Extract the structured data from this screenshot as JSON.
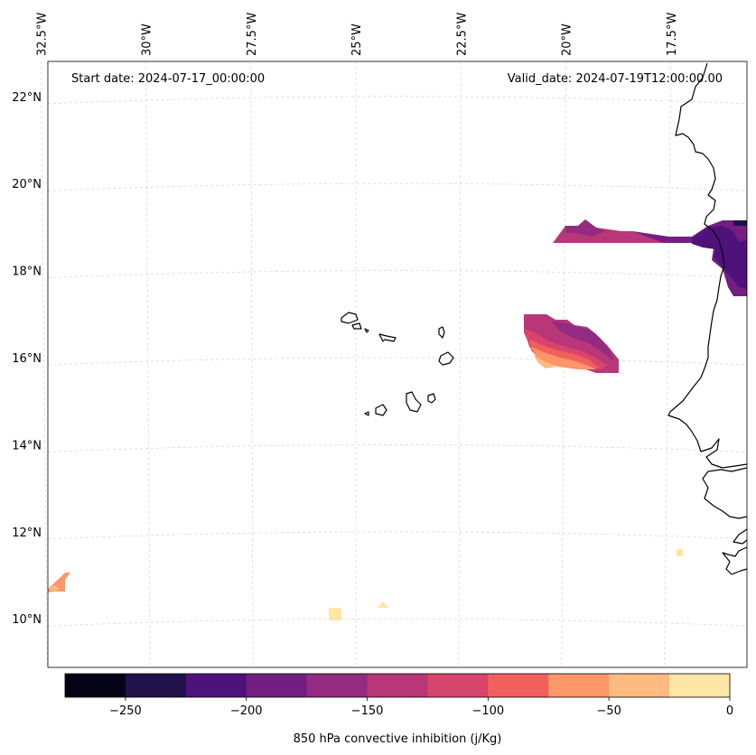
{
  "map": {
    "start_label": "Start date: 2024-07-17_00:00:00",
    "valid_label": "Valid_date: 2024-07-19T12:00:00.00",
    "lon_labels": [
      {
        "lon": -32.5,
        "text": "32.5°W"
      },
      {
        "lon": -30,
        "text": "30°W"
      },
      {
        "lon": -27.5,
        "text": "27.5°W"
      },
      {
        "lon": -25,
        "text": "25°W"
      },
      {
        "lon": -22.5,
        "text": "22.5°W"
      },
      {
        "lon": -20,
        "text": "20°W"
      },
      {
        "lon": -17.5,
        "text": "17.5°W"
      }
    ],
    "lat_labels": [
      {
        "lat": 22,
        "text": "22°N"
      },
      {
        "lat": 20,
        "text": "20°N"
      },
      {
        "lat": 18,
        "text": "18°N"
      },
      {
        "lat": 16,
        "text": "16°N"
      },
      {
        "lat": 14,
        "text": "14°N"
      },
      {
        "lat": 12,
        "text": "12°N"
      },
      {
        "lat": 10,
        "text": "10°N"
      }
    ]
  },
  "colorbar": {
    "label": "850 hPa convective inhibition (j/Kg)",
    "min": -275,
    "max": 0,
    "bins": [
      {
        "from": -275,
        "to": -250,
        "color": "#050416"
      },
      {
        "from": -250,
        "to": -225,
        "color": "#20114b"
      },
      {
        "from": -225,
        "to": -200,
        "color": "#4f127b"
      },
      {
        "from": -200,
        "to": -175,
        "color": "#721f81"
      },
      {
        "from": -175,
        "to": -150,
        "color": "#932b80"
      },
      {
        "from": -150,
        "to": -125,
        "color": "#b73779"
      },
      {
        "from": -125,
        "to": -100,
        "color": "#d8456c"
      },
      {
        "from": -100,
        "to": -75,
        "color": "#f1605d"
      },
      {
        "from": -75,
        "to": -50,
        "color": "#fd9668"
      },
      {
        "from": -50,
        "to": -25,
        "color": "#febb81"
      },
      {
        "from": -25,
        "to": 0,
        "color": "#fee6a4"
      }
    ],
    "ticks": [
      {
        "value": -250,
        "text": "−250"
      },
      {
        "value": -200,
        "text": "−200"
      },
      {
        "value": -150,
        "text": "−150"
      },
      {
        "value": -100,
        "text": "−100"
      },
      {
        "value": -50,
        "text": "−50"
      },
      {
        "value": 0,
        "text": "0"
      }
    ]
  },
  "cin_regions": [
    {
      "id": "north-plume-west",
      "color": "#b73779"
    },
    {
      "id": "north-plume-mid",
      "color": "#932b80"
    },
    {
      "id": "north-plume-east",
      "color": "#721f81"
    },
    {
      "id": "north-plume-core",
      "color": "#4f127b"
    },
    {
      "id": "north-plume-edge",
      "color": "#20114b"
    },
    {
      "id": "central-blob-outer",
      "color": "#b73779"
    },
    {
      "id": "central-blob-purple",
      "color": "#932b80"
    },
    {
      "id": "central-blob-red",
      "color": "#d8456c"
    },
    {
      "id": "central-blob-coral",
      "color": "#f1605d"
    },
    {
      "id": "central-blob-orange",
      "color": "#fd9668"
    },
    {
      "id": "central-blob-peach",
      "color": "#febb81"
    },
    {
      "id": "sw-patch",
      "color": "#fd9668"
    },
    {
      "id": "south-patch-1",
      "color": "#fee6a4"
    },
    {
      "id": "south-patch-2",
      "color": "#fee6a4"
    },
    {
      "id": "east-patch",
      "color": "#fee6a4"
    }
  ]
}
